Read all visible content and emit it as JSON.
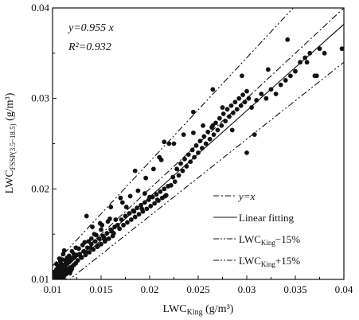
{
  "chart_data": {
    "type": "scatter",
    "title": "",
    "xlabel": {
      "main": "LWC",
      "sub": "King",
      "unit": " (g/m³)"
    },
    "ylabel": {
      "main": "LWC",
      "sub": "FSSP(3.5~18.5)",
      "unit": " (g/m³)"
    },
    "xlim": [
      0.01,
      0.04
    ],
    "ylim": [
      0.01,
      0.04
    ],
    "x_ticks": [
      0.01,
      0.015,
      0.02,
      0.025,
      0.03,
      0.035,
      0.04
    ],
    "x_tick_labels": [
      "0.01",
      "0.015",
      "0.02",
      "0.025",
      "0.03",
      "0.035",
      "0.04"
    ],
    "y_ticks": [
      0.01,
      0.02,
      0.03,
      0.04
    ],
    "y_tick_labels": [
      "0.01",
      "0.02",
      "0.03",
      "0.04"
    ],
    "annotations": {
      "equation": "y=0.955 x",
      "r2": "R²=0.932"
    },
    "legend_position": "bottom-right",
    "lines": [
      {
        "name": "y=x",
        "slope": 1.0,
        "style": "dash-dot",
        "label_prefix": "y=x",
        "label_sub": "",
        "label_suffix": ""
      },
      {
        "name": "Linear fitting",
        "slope": 0.955,
        "style": "solid",
        "label_prefix": "Linear fitting",
        "label_sub": "",
        "label_suffix": ""
      },
      {
        "name": "LWC King -15%",
        "slope": 0.85,
        "style": "dash-dot-dot",
        "label_prefix": "LWC",
        "label_sub": "King",
        "label_suffix": "−15%"
      },
      {
        "name": "LWC King +15%",
        "slope": 1.15,
        "style": "dash-dot-dot",
        "label_prefix": "LWC",
        "label_sub": "King",
        "label_suffix": "+15%"
      }
    ],
    "series": [
      {
        "x": [
          0.01,
          0.0102,
          0.0103,
          0.0104,
          0.0105,
          0.0106,
          0.0107,
          0.0108,
          0.0109,
          0.011,
          0.0111,
          0.0112,
          0.0113,
          0.0114,
          0.0115,
          0.0116,
          0.0117,
          0.0118,
          0.0119,
          0.012,
          0.0121,
          0.0122,
          0.0123,
          0.0124,
          0.0125,
          0.0102,
          0.0104,
          0.0106,
          0.0108,
          0.011,
          0.0112,
          0.0114,
          0.0116,
          0.0118,
          0.012,
          0.0122,
          0.0105,
          0.0107,
          0.0109,
          0.0111,
          0.0113,
          0.0115,
          0.0117,
          0.0119,
          0.0101,
          0.0103,
          0.0104,
          0.0106,
          0.0108,
          0.011,
          0.0112,
          0.0114,
          0.0116,
          0.0118,
          0.0107,
          0.0109,
          0.0111,
          0.0115,
          0.0113,
          0.0101,
          0.0104,
          0.0108,
          0.0112,
          0.0106,
          0.011,
          0.012,
          0.0124,
          0.0122,
          0.0126,
          0.0128,
          0.013,
          0.0132,
          0.0134,
          0.0136,
          0.0138,
          0.014,
          0.0142,
          0.0144,
          0.0146,
          0.0148,
          0.015,
          0.0152,
          0.0154,
          0.0156,
          0.0158,
          0.016,
          0.0162,
          0.0164,
          0.0127,
          0.0131,
          0.0135,
          0.0139,
          0.0143,
          0.0147,
          0.0151,
          0.0155,
          0.0159,
          0.0163,
          0.0129,
          0.0133,
          0.0137,
          0.0141,
          0.0145,
          0.0149,
          0.0153,
          0.0157,
          0.0161,
          0.0165,
          0.0167,
          0.0169,
          0.0171,
          0.0173,
          0.0175,
          0.0177,
          0.0179,
          0.0181,
          0.0183,
          0.0185,
          0.0187,
          0.0189,
          0.0191,
          0.0193,
          0.0195,
          0.0197,
          0.0199,
          0.0201,
          0.0203,
          0.0205,
          0.0207,
          0.0209,
          0.0211,
          0.0213,
          0.0215,
          0.0217,
          0.0219,
          0.0172,
          0.0176,
          0.018,
          0.0184,
          0.0188,
          0.0192,
          0.0196,
          0.02,
          0.0204,
          0.0208,
          0.0212,
          0.0216,
          0.022,
          0.0222,
          0.0224,
          0.0226,
          0.0228,
          0.023,
          0.0232,
          0.0234,
          0.0236,
          0.0238,
          0.024,
          0.0242,
          0.0244,
          0.0246,
          0.0248,
          0.025,
          0.0252,
          0.0254,
          0.0256,
          0.0258,
          0.026,
          0.0262,
          0.0264,
          0.0266,
          0.0268,
          0.027,
          0.0272,
          0.0274,
          0.0276,
          0.0278,
          0.028,
          0.0282,
          0.0284,
          0.0286,
          0.0288,
          0.029,
          0.0292,
          0.0294,
          0.0296,
          0.0298,
          0.03,
          0.0302,
          0.0305,
          0.031,
          0.0315,
          0.032,
          0.0325,
          0.033,
          0.0335,
          0.034,
          0.0345,
          0.035,
          0.0355,
          0.036,
          0.0365,
          0.037,
          0.0375,
          0.038,
          0.0398,
          0.0135,
          0.014,
          0.015,
          0.016,
          0.017,
          0.0185,
          0.0195,
          0.021,
          0.0225,
          0.0235,
          0.0245,
          0.0255,
          0.0265,
          0.0275,
          0.0285,
          0.0295,
          0.0308,
          0.0322,
          0.0342,
          0.0362,
          0.0372,
          0.03,
          0.0245,
          0.0265,
          0.0215
        ],
        "y": [
          0.01,
          0.0101,
          0.0104,
          0.0102,
          0.0106,
          0.0103,
          0.0108,
          0.0105,
          0.011,
          0.0107,
          0.0112,
          0.0108,
          0.0114,
          0.011,
          0.0117,
          0.0111,
          0.0119,
          0.0113,
          0.0121,
          0.0114,
          0.0123,
          0.0116,
          0.0125,
          0.0118,
          0.0127,
          0.0105,
          0.01,
          0.011,
          0.0103,
          0.0115,
          0.0104,
          0.0119,
          0.0108,
          0.0124,
          0.0112,
          0.0128,
          0.0112,
          0.0102,
          0.0117,
          0.0104,
          0.0121,
          0.0107,
          0.0126,
          0.011,
          0.0104,
          0.0107,
          0.0111,
          0.0101,
          0.0113,
          0.0101,
          0.0116,
          0.0106,
          0.012,
          0.0107,
          0.0123,
          0.0106,
          0.0128,
          0.0124,
          0.0099,
          0.0108,
          0.0117,
          0.012,
          0.0132,
          0.0115,
          0.0122,
          0.0131,
          0.0135,
          0.0125,
          0.0121,
          0.0128,
          0.0124,
          0.0131,
          0.0127,
          0.0135,
          0.013,
          0.0139,
          0.0133,
          0.0142,
          0.0136,
          0.0145,
          0.0139,
          0.0148,
          0.0142,
          0.0151,
          0.0145,
          0.0155,
          0.0148,
          0.0158,
          0.0134,
          0.0138,
          0.017,
          0.0135,
          0.015,
          0.0137,
          0.016,
          0.0144,
          0.0167,
          0.0151,
          0.0125,
          0.0141,
          0.0142,
          0.0158,
          0.0149,
          0.0162,
          0.0145,
          0.0164,
          0.0153,
          0.0166,
          0.016,
          0.0156,
          0.0166,
          0.016,
          0.017,
          0.0163,
          0.0173,
          0.0166,
          0.0176,
          0.0169,
          0.0179,
          0.0172,
          0.0182,
          0.0175,
          0.0185,
          0.0178,
          0.0188,
          0.0181,
          0.0191,
          0.0184,
          0.0194,
          0.0187,
          0.0197,
          0.019,
          0.02,
          0.0193,
          0.0203,
          0.0185,
          0.018,
          0.0192,
          0.0175,
          0.0198,
          0.0178,
          0.0212,
          0.0191,
          0.0222,
          0.0188,
          0.0232,
          0.0192,
          0.025,
          0.0204,
          0.0213,
          0.0208,
          0.0222,
          0.0215,
          0.0228,
          0.022,
          0.0233,
          0.0225,
          0.0238,
          0.023,
          0.0243,
          0.0235,
          0.0248,
          0.024,
          0.0253,
          0.0245,
          0.0258,
          0.025,
          0.0263,
          0.0255,
          0.0268,
          0.026,
          0.0273,
          0.0265,
          0.0278,
          0.027,
          0.0283,
          0.0275,
          0.0288,
          0.028,
          0.0292,
          0.0284,
          0.0296,
          0.0288,
          0.03,
          0.0292,
          0.0304,
          0.0296,
          0.0308,
          0.03,
          0.029,
          0.0298,
          0.0305,
          0.03,
          0.031,
          0.0305,
          0.0315,
          0.032,
          0.0325,
          0.033,
          0.034,
          0.0345,
          0.035,
          0.0325,
          0.0355,
          0.035,
          0.0355,
          0.013,
          0.0145,
          0.0155,
          0.018,
          0.019,
          0.022,
          0.0195,
          0.0235,
          0.025,
          0.026,
          0.0285,
          0.027,
          0.031,
          0.029,
          0.0265,
          0.0325,
          0.026,
          0.0332,
          0.0365,
          0.034,
          0.0325,
          0.024,
          0.0262,
          0.027,
          0.0252
        ]
      }
    ]
  }
}
